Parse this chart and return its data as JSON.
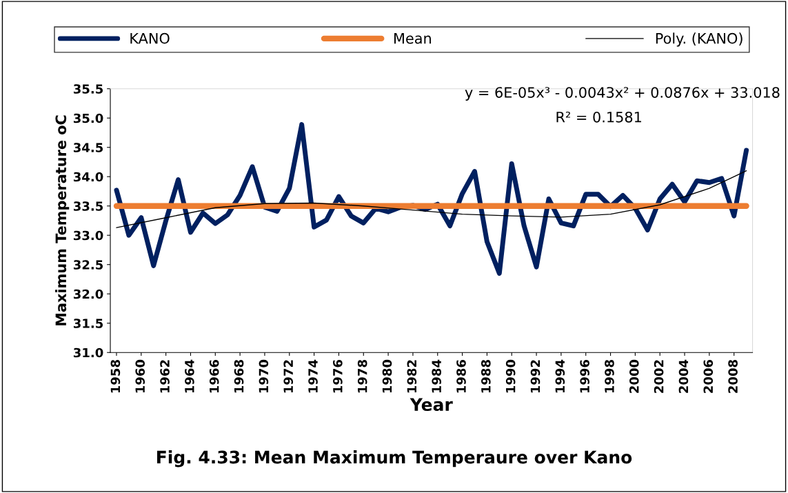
{
  "chart_data": {
    "type": "line",
    "title": "Fig. 4.33: Mean Maximum Temperaure over Kano",
    "xlabel": "Year",
    "ylabel": "Maximum Temperature oC",
    "x": [
      1958,
      1959,
      1960,
      1961,
      1962,
      1963,
      1964,
      1965,
      1966,
      1967,
      1968,
      1969,
      1970,
      1971,
      1972,
      1973,
      1974,
      1975,
      1976,
      1977,
      1978,
      1979,
      1980,
      1981,
      1982,
      1983,
      1984,
      1985,
      1986,
      1987,
      1988,
      1989,
      1990,
      1991,
      1992,
      1993,
      1994,
      1995,
      1996,
      1997,
      1998,
      1999,
      2000,
      2001,
      2002,
      2003,
      2004,
      2005,
      2006,
      2007,
      2008,
      2009
    ],
    "series": [
      {
        "name": "KANO",
        "color": "#002060",
        "values": [
          33.77,
          33.0,
          33.3,
          32.48,
          33.25,
          33.95,
          33.05,
          33.38,
          33.2,
          33.35,
          33.68,
          34.17,
          33.48,
          33.41,
          33.8,
          34.89,
          33.14,
          33.26,
          33.66,
          33.33,
          33.21,
          33.46,
          33.4,
          33.48,
          33.51,
          33.44,
          33.53,
          33.16,
          33.71,
          34.09,
          32.89,
          32.35,
          34.22,
          33.16,
          32.46,
          33.62,
          33.21,
          33.16,
          33.7,
          33.7,
          33.49,
          33.68,
          33.46,
          33.09,
          33.62,
          33.87,
          33.57,
          33.93,
          33.9,
          33.97,
          33.33,
          34.45
        ]
      },
      {
        "name": "Mean",
        "color": "#ed7d31",
        "x": [
          1958,
          2009
        ],
        "values": [
          33.5,
          33.5
        ]
      },
      {
        "name": "Poly. (KANO)",
        "color": "#000000",
        "x": [
          1958,
          1962,
          1966,
          1970,
          1974,
          1978,
          1982,
          1986,
          1990,
          1994,
          1998,
          2002,
          2006,
          2009
        ],
        "values": [
          33.13,
          33.3,
          33.47,
          33.54,
          33.55,
          33.5,
          33.43,
          33.36,
          33.33,
          33.31,
          33.36,
          33.52,
          33.8,
          34.1
        ]
      }
    ],
    "xlim": [
      1957.5,
      2009.5
    ],
    "xticks": [
      1958,
      1960,
      1962,
      1964,
      1966,
      1968,
      1970,
      1972,
      1974,
      1976,
      1978,
      1980,
      1982,
      1984,
      1986,
      1988,
      1990,
      1992,
      1994,
      1996,
      1998,
      2000,
      2002,
      2004,
      2006,
      2008
    ],
    "ylim": [
      31.0,
      35.5
    ],
    "yticks": [
      {
        "value": 31.0,
        "label": "31.0"
      },
      {
        "value": 31.5,
        "label": "31.5"
      },
      {
        "value": 32.0,
        "label": "32.0"
      },
      {
        "value": 32.5,
        "label": "32.5"
      },
      {
        "value": 33.0,
        "label": "33.0"
      },
      {
        "value": 33.5,
        "label": "33.5"
      },
      {
        "value": 34.0,
        "label": "34.0"
      },
      {
        "value": 34.5,
        "label": "34.5"
      },
      {
        "value": 35.0,
        "label": "35.0"
      },
      {
        "value": 35.5,
        "label": "35.5"
      }
    ],
    "annotations": [
      "y = 6E-05x³ - 0.0043x² + 0.0876x + 33.018",
      "R² = 0.1581"
    ],
    "grid": false,
    "legend": "top",
    "marker": "none",
    "line_style": "solid"
  }
}
